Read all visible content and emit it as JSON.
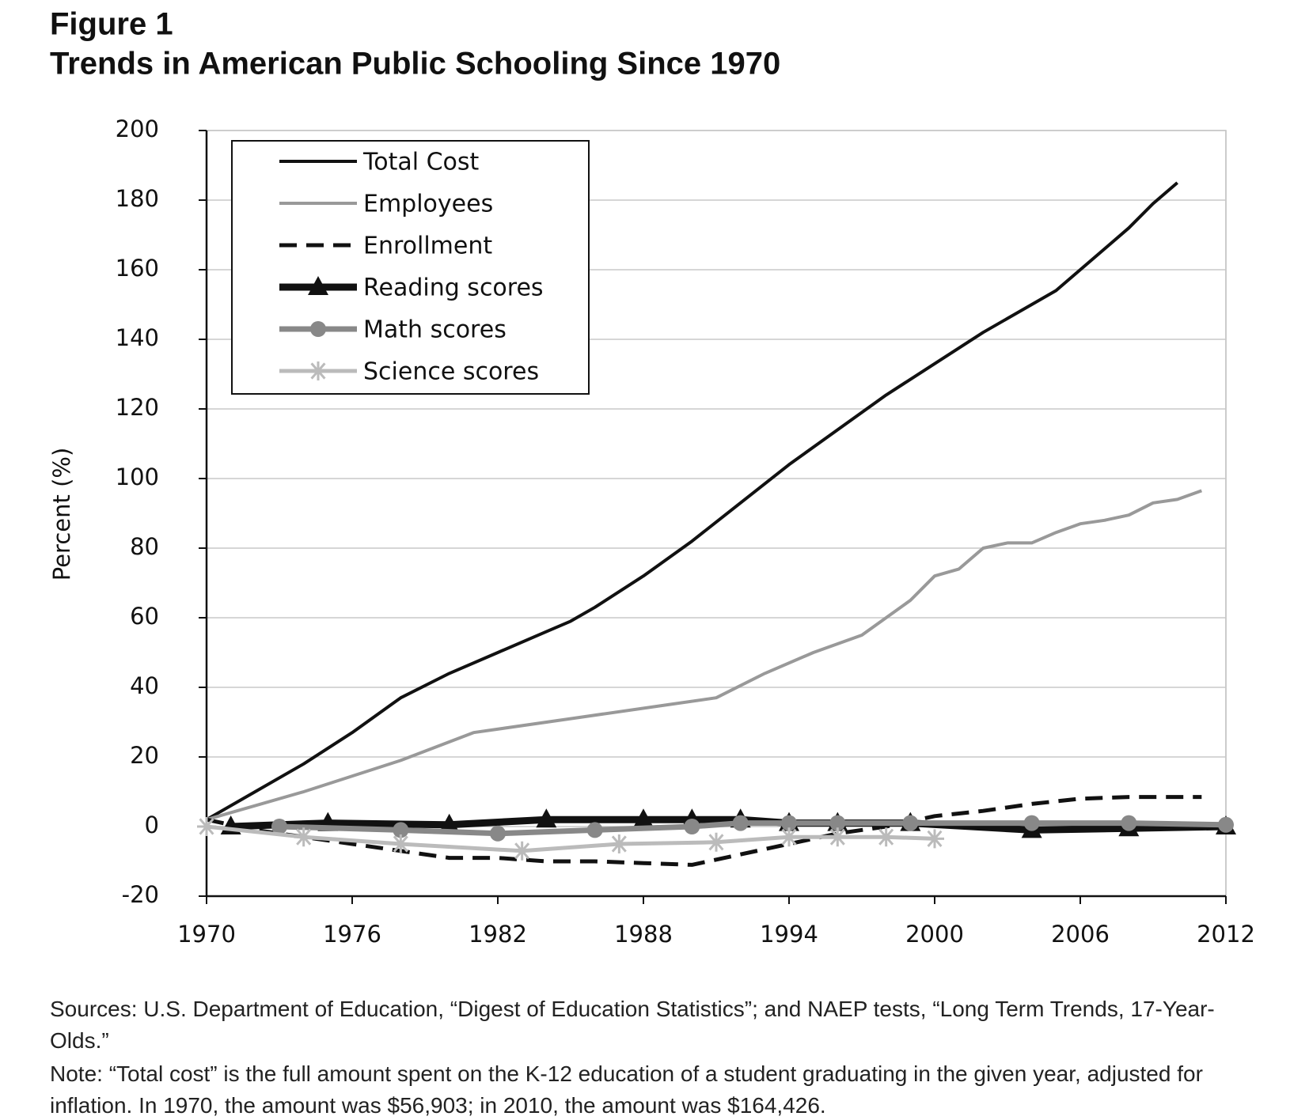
{
  "chart_data": {
    "type": "line",
    "figure_label": "Figure 1",
    "title": "Trends in American Public Schooling Since 1970",
    "y_label": "Percent (%)",
    "xlim": [
      1970,
      2012
    ],
    "xticks": [
      1970,
      1976,
      1982,
      1988,
      1994,
      2000,
      2006,
      2012
    ],
    "ylim": [
      -20,
      200
    ],
    "yticks": [
      -20,
      0,
      20,
      40,
      60,
      80,
      100,
      120,
      140,
      160,
      180,
      200
    ],
    "grid": true,
    "legend": "top-left",
    "series": [
      {
        "name": "Total Cost",
        "color": "#111111",
        "width": 4,
        "dash": "none",
        "marker": "none",
        "x": [
          1970,
          1972,
          1974,
          1976,
          1978,
          1980,
          1982,
          1984,
          1985,
          1986,
          1988,
          1990,
          1992,
          1994,
          1995,
          1996,
          1998,
          2000,
          2002,
          2004,
          2005,
          2006,
          2008,
          2009,
          2010
        ],
        "values": [
          2,
          10,
          18,
          27,
          37,
          44,
          50,
          56,
          59,
          63,
          72,
          82,
          93,
          104,
          109,
          114,
          124,
          133,
          142,
          150,
          154,
          160,
          172,
          179,
          185
        ]
      },
      {
        "name": "Employees",
        "color": "#999999",
        "width": 4,
        "dash": "none",
        "marker": "none",
        "x": [
          1970,
          1974,
          1978,
          1981,
          1985,
          1989,
          1991,
          1993,
          1995,
          1997,
          1999,
          2000,
          2001,
          2002,
          2003,
          2004,
          2005,
          2006,
          2007,
          2008,
          2009,
          2010,
          2011
        ],
        "values": [
          2,
          10,
          19,
          27,
          31,
          35,
          37,
          44,
          50,
          55,
          65,
          72,
          74,
          80,
          81.5,
          81.5,
          84.5,
          87,
          88,
          89.5,
          93,
          94,
          96.5
        ]
      },
      {
        "name": "Enrollment",
        "color": "#111111",
        "width": 5,
        "dash": "22 12",
        "marker": "none",
        "x": [
          1970,
          1972,
          1974,
          1976,
          1978,
          1980,
          1982,
          1984,
          1986,
          1988,
          1990,
          1992,
          1994,
          1996,
          1998,
          2000,
          2002,
          2004,
          2006,
          2008,
          2010,
          2011
        ],
        "values": [
          2,
          -1,
          -3,
          -5,
          -7,
          -9,
          -9,
          -10,
          -10,
          -10.5,
          -11,
          -8,
          -5,
          -2,
          0,
          3,
          4.5,
          6.5,
          8,
          8.5,
          8.5,
          8.5
        ]
      },
      {
        "name": "Reading scores",
        "color": "#111111",
        "width": 9,
        "dash": "none",
        "marker": "triangle",
        "x": [
          1971,
          1975,
          1980,
          1984,
          1988,
          1990,
          1992,
          1994,
          1996,
          1999,
          2004,
          2008,
          2012
        ],
        "values": [
          0,
          1,
          0.5,
          2,
          2,
          2,
          2,
          1,
          1,
          1,
          -1,
          -0.5,
          0
        ]
      },
      {
        "name": "Math scores",
        "color": "#888888",
        "width": 7,
        "dash": "none",
        "marker": "circle",
        "x": [
          1973,
          1978,
          1982,
          1986,
          1990,
          1992,
          1994,
          1996,
          1999,
          2004,
          2008,
          2012
        ],
        "values": [
          0,
          -1,
          -2,
          -1,
          0,
          1,
          1,
          1,
          1,
          1,
          1,
          0.5
        ]
      },
      {
        "name": "Science scores",
        "color": "#bbbbbb",
        "width": 5,
        "dash": "none",
        "marker": "asterisk",
        "x": [
          1970,
          1974,
          1978,
          1983,
          1987,
          1991,
          1994,
          1996,
          1998,
          2000
        ],
        "values": [
          0,
          -3,
          -5,
          -7,
          -5,
          -4.5,
          -3,
          -3,
          -3,
          -3.5
        ]
      }
    ],
    "sources": "Sources: U.S. Department of Education, “Digest of Education Statistics”; and NAEP tests, “Long Term Trends, 17-Year-Olds.”",
    "note": "Note: “Total cost” is the full amount spent on the K-12 education of a student graduating in the given year, adjusted for inflation. In 1970, the amount was $56,903; in 2010, the amount was $164,426."
  }
}
